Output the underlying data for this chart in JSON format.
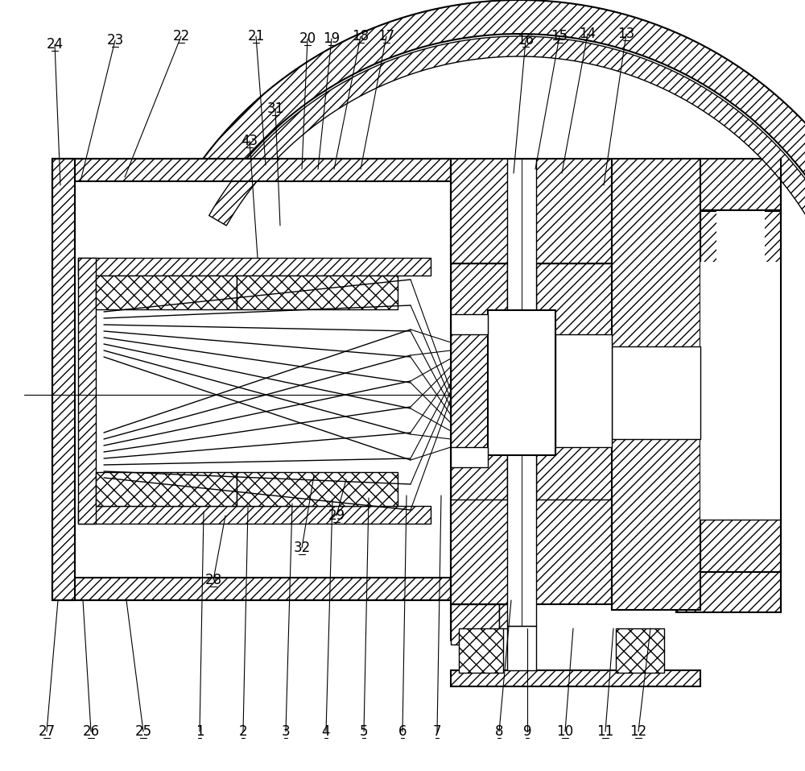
{
  "bg_color": "#ffffff",
  "line_color": "#000000",
  "lw": 1.0,
  "lw2": 1.5,
  "figsize": [
    10.0,
    9.57
  ],
  "dpi": 100,
  "label_fontsize": 12
}
